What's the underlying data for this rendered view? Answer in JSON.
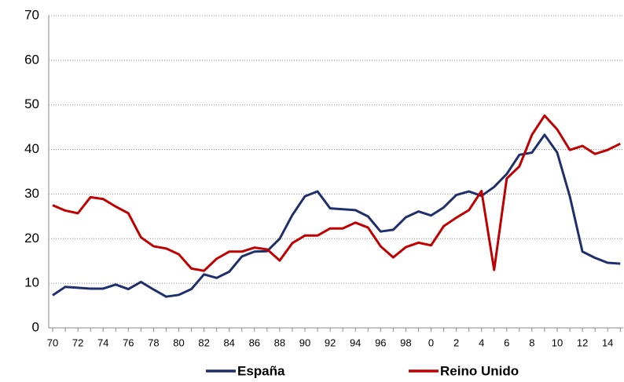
{
  "chart_data": {
    "type": "line",
    "categories": [
      "70",
      null,
      "72",
      null,
      "74",
      null,
      "76",
      null,
      "78",
      null,
      "80",
      null,
      "82",
      null,
      "84",
      null,
      "86",
      null,
      "88",
      null,
      "90",
      null,
      "92",
      null,
      "94",
      null,
      "96",
      null,
      "98",
      null,
      "0",
      null,
      "2",
      null,
      "4",
      null,
      "6",
      null,
      "8",
      null,
      "10",
      null,
      "12",
      null,
      "14",
      null
    ],
    "series": [
      {
        "name": "España",
        "color": "#1f2f6b",
        "values": [
          7.3,
          9.2,
          9.0,
          8.8,
          8.8,
          9.7,
          8.7,
          10.3,
          8.6,
          7.0,
          7.4,
          8.7,
          12.0,
          11.2,
          12.6,
          16.0,
          17.1,
          17.2,
          20.0,
          25.3,
          29.5,
          30.6,
          26.8,
          26.6,
          26.4,
          25.0,
          21.6,
          22.0,
          24.8,
          26.1,
          25.2,
          27.0,
          29.8,
          30.6,
          29.6,
          31.6,
          34.5,
          38.8,
          39.3,
          43.3,
          39.3,
          29.5,
          17.1,
          15.7,
          14.6,
          14.4
        ]
      },
      {
        "name": "Reino Unido",
        "color": "#c00000",
        "values": [
          27.5,
          26.3,
          25.7,
          29.3,
          28.9,
          27.2,
          25.7,
          20.3,
          18.3,
          17.8,
          16.5,
          13.3,
          12.8,
          15.5,
          17.1,
          17.1,
          18.0,
          17.6,
          15.1,
          19.0,
          20.7,
          20.7,
          22.3,
          22.3,
          23.6,
          22.5,
          18.3,
          15.8,
          18.1,
          19.1,
          18.5,
          22.8,
          24.7,
          26.4,
          30.7,
          13.0,
          33.5,
          36.2,
          43.3,
          47.6,
          44.5,
          39.9,
          40.8,
          39.0,
          39.9,
          41.3
        ]
      }
    ],
    "ylim": [
      0,
      70
    ],
    "yticks": [
      0,
      10,
      20,
      30,
      40,
      50,
      60,
      70
    ],
    "grid": true,
    "legend": "bottom"
  }
}
